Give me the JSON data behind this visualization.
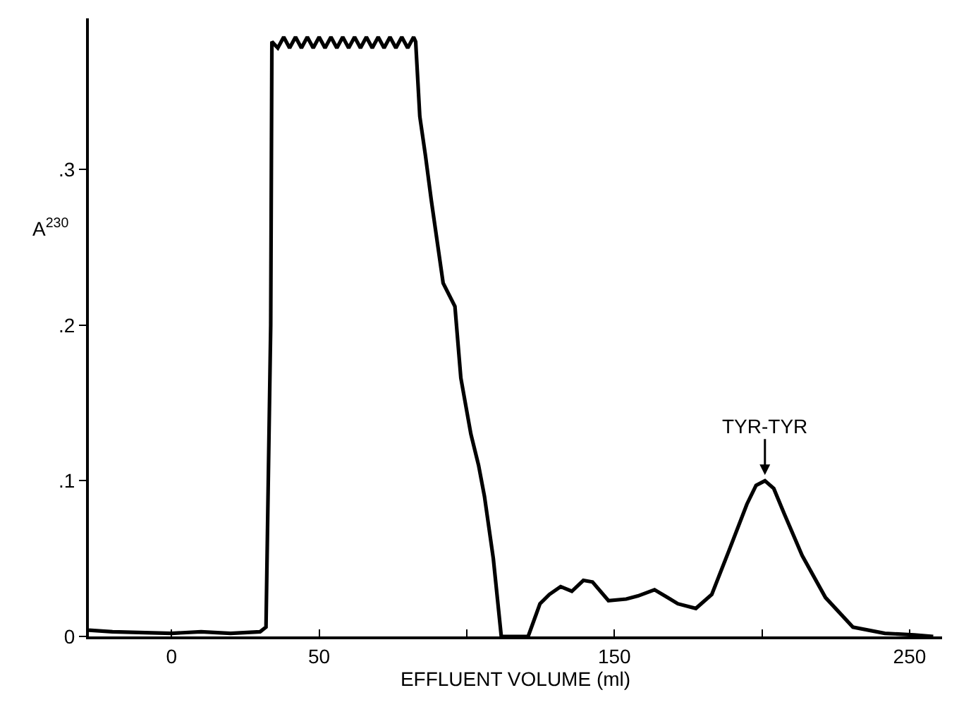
{
  "chart_data": {
    "type": "line",
    "xlabel": "EFFLUENT VOLUME (ml)",
    "ylabel": "A$^{230}$",
    "x": [
      -28,
      -20,
      0,
      10,
      20,
      30,
      32,
      33.6,
      34,
      36,
      38,
      40,
      42,
      44,
      46,
      48,
      50,
      52,
      54,
      56,
      58,
      60,
      62,
      64,
      66,
      68,
      70,
      72,
      74,
      76,
      78,
      80,
      82,
      82.7,
      84.1,
      86,
      88,
      92,
      96,
      98,
      101.4,
      104,
      106,
      109,
      111.7,
      116,
      120.8,
      124.8,
      128,
      131.8,
      135.6,
      139.5,
      142.6,
      148,
      154,
      158,
      163.6,
      168,
      171.5,
      177.6,
      183,
      188.8,
      194.9,
      198,
      201,
      204,
      207.5,
      213.6,
      221.5,
      230.8,
      241.6,
      251.6,
      258
    ],
    "series": [
      {
        "color": "#000000",
        "values": [
          0.004,
          0.003,
          0.002,
          0.003,
          0.002,
          0.003,
          0.006,
          0.2,
          0.382,
          0.378,
          0.385,
          0.378,
          0.385,
          0.378,
          0.385,
          0.378,
          0.385,
          0.378,
          0.385,
          0.378,
          0.385,
          0.378,
          0.385,
          0.378,
          0.385,
          0.378,
          0.385,
          0.378,
          0.385,
          0.378,
          0.385,
          0.378,
          0.385,
          0.382,
          0.334,
          0.309,
          0.28,
          0.227,
          0.212,
          0.166,
          0.13,
          0.11,
          0.09,
          0.05,
          0.0,
          0.0,
          0.0,
          0.021,
          0.027,
          0.032,
          0.029,
          0.036,
          0.035,
          0.023,
          0.024,
          0.026,
          0.03,
          0.025,
          0.021,
          0.018,
          0.027,
          0.055,
          0.085,
          0.097,
          0.1,
          0.095,
          0.079,
          0.052,
          0.025,
          0.006,
          0.002,
          0.001,
          0.0
        ]
      }
    ],
    "annotations": [
      {
        "text": "TYR-TYR",
        "x": 201,
        "y": 0.1
      }
    ],
    "xlim": [
      -28,
      261
    ],
    "ylim": [
      0,
      0.397
    ],
    "xticks": [
      0,
      50,
      {
        "value": 100,
        "label": null
      },
      150,
      {
        "value": 200,
        "label": null
      },
      250
    ],
    "yticks": [
      {
        "value": 0,
        "label": "0"
      },
      {
        "value": 0.1,
        "label": ".1"
      },
      {
        "value": 0.2,
        "label": ".2"
      },
      {
        "value": 0.3,
        "label": ".3"
      }
    ],
    "marker": "none",
    "line_style": "solid"
  }
}
